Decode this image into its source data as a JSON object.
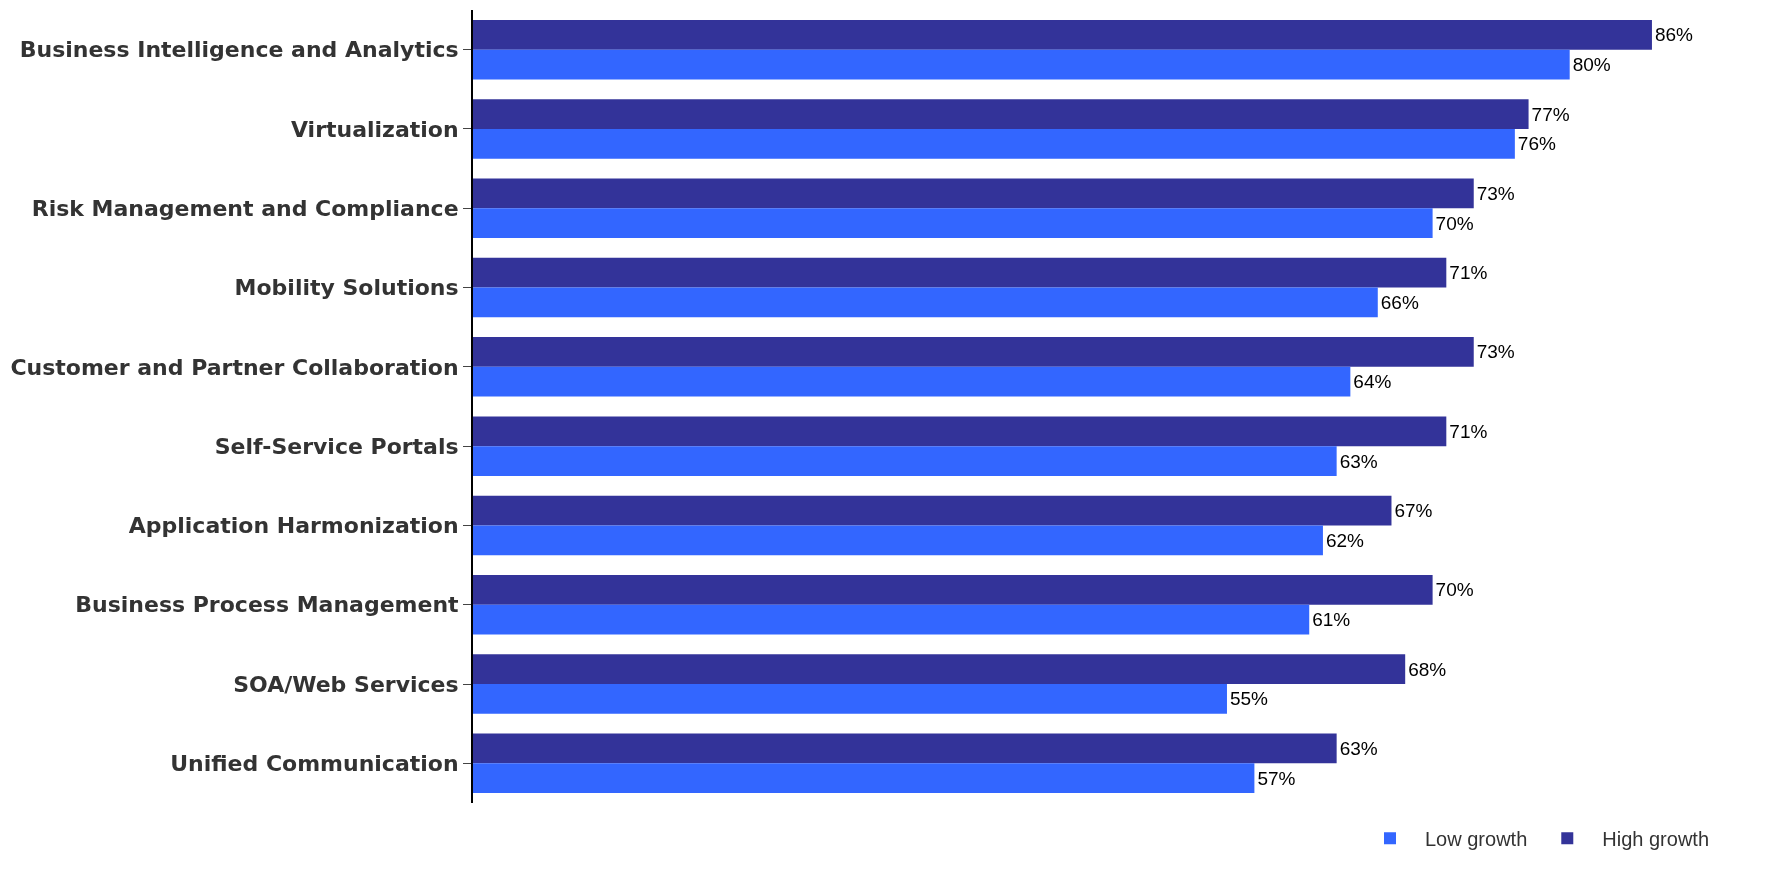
{
  "chart_data": {
    "type": "bar",
    "orientation": "horizontal",
    "legend": "bottom right",
    "categories": [
      "Business Intelligence and Analytics",
      "Virtualization",
      "Risk Management and Compliance",
      "Mobility Solutions",
      "Customer and Partner Collaboration",
      "Self-Service Portals",
      "Application Harmonization",
      "Business Process Management",
      "SOA/Web Services",
      "Unified Communication"
    ],
    "series": [
      {
        "name": "Low growth",
        "color": "#3366ff",
        "values": [
          80,
          76,
          70,
          66,
          64,
          63,
          62,
          61,
          55,
          57
        ],
        "value_labels": [
          "80%",
          "76%",
          "70%",
          "66%",
          "64%",
          "63%",
          "62%",
          "61%",
          "55%",
          "57%"
        ]
      },
      {
        "name": "High growth",
        "color": "#333399",
        "values": [
          86,
          77,
          73,
          71,
          73,
          71,
          67,
          70,
          68,
          63
        ],
        "value_labels": [
          "86%",
          "77%",
          "73%",
          "71%",
          "73%",
          "71%",
          "67%",
          "70%",
          "68%",
          "63%"
        ]
      }
    ]
  }
}
